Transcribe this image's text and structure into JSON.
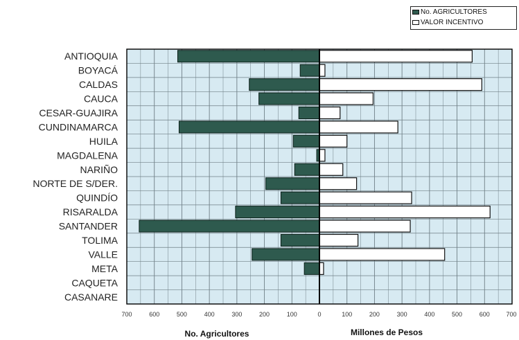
{
  "chart_data": {
    "type": "bar",
    "orientation": "horizontal-diverging",
    "categories": [
      "ANTIOQUIA",
      "BOYACÁ",
      "CALDAS",
      "CAUCA",
      "CESAR-GUAJIRA",
      "CUNDINAMARCA",
      "HUILA",
      "MAGDALENA",
      "NARIÑO",
      "NORTE DE S/DER.",
      "QUINDÍO",
      "RISARALDA",
      "SANTANDER",
      "TOLIMA",
      "VALLE",
      "META",
      "CAQUETA",
      "CASANARE"
    ],
    "series": [
      {
        "name": "No. AGRICULTORES",
        "color": "#2e5a4e",
        "side": "left",
        "values": [
          515,
          70,
          255,
          220,
          75,
          510,
          95,
          10,
          90,
          195,
          140,
          305,
          655,
          140,
          245,
          55,
          0,
          0
        ]
      },
      {
        "name": "VALOR INCENTIVO",
        "color": "#ffffff",
        "side": "right",
        "values": [
          555,
          20,
          590,
          195,
          75,
          285,
          100,
          20,
          85,
          135,
          335,
          620,
          330,
          140,
          455,
          15,
          0,
          0
        ]
      }
    ],
    "left_axis": {
      "label": "No. Agricultores",
      "ticks": [
        "700",
        "600",
        "500",
        "400",
        "300",
        "200",
        "100",
        "0"
      ],
      "range": [
        0,
        700
      ]
    },
    "right_axis": {
      "label": "Millones de Pesos",
      "ticks": [
        "0",
        "100",
        "200",
        "300",
        "400",
        "500",
        "600",
        "700"
      ],
      "range": [
        0,
        700
      ]
    },
    "grid": true,
    "legend_position": "top-right",
    "plot_background": "#d7eaf2"
  }
}
